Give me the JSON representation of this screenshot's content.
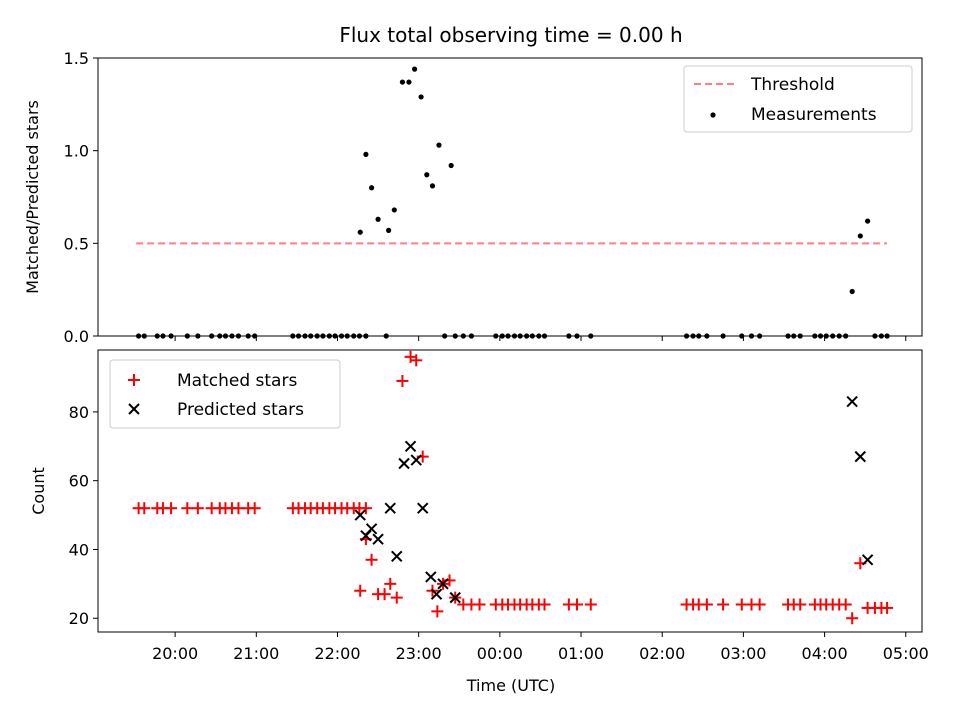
{
  "chart_data": [
    {
      "type": "scatter",
      "title": "Flux total observing time = 0.00 h",
      "xlabel": "",
      "ylabel": "Matched/Predicted stars",
      "ylim": [
        0,
        1.5
      ],
      "yticks": [
        "0.0",
        "0.5",
        "1.0",
        "1.5"
      ],
      "xlim_hours": [
        -4.95,
        5.2
      ],
      "xticks_hours": [
        -4,
        -3,
        -2,
        -1,
        0,
        1,
        2,
        3,
        4,
        5
      ],
      "legend": {
        "placement": "top-right",
        "entries": [
          "Threshold",
          "Measurements"
        ]
      },
      "threshold": {
        "name": "Threshold",
        "value": 0.5,
        "x_range_hours": [
          -4.48,
          4.77
        ],
        "color": "#ff7f7f"
      },
      "series": [
        {
          "name": "Measurements",
          "color": "#000000",
          "points": [
            [
              -4.45,
              0
            ],
            [
              -4.38,
              0
            ],
            [
              -4.22,
              0
            ],
            [
              -4.15,
              0
            ],
            [
              -4.05,
              0
            ],
            [
              -3.85,
              0
            ],
            [
              -3.72,
              0
            ],
            [
              -3.55,
              0
            ],
            [
              -3.45,
              0
            ],
            [
              -3.38,
              0
            ],
            [
              -3.3,
              0
            ],
            [
              -3.22,
              0
            ],
            [
              -3.1,
              0
            ],
            [
              -3.02,
              0
            ],
            [
              -2.55,
              0
            ],
            [
              -2.48,
              0
            ],
            [
              -2.4,
              0
            ],
            [
              -2.33,
              0
            ],
            [
              -2.25,
              0
            ],
            [
              -2.18,
              0
            ],
            [
              -2.1,
              0
            ],
            [
              -2.03,
              0
            ],
            [
              -1.95,
              0
            ],
            [
              -1.88,
              0
            ],
            [
              -1.8,
              0
            ],
            [
              -1.73,
              0
            ],
            [
              -1.65,
              0
            ],
            [
              -1.72,
              0.56
            ],
            [
              -1.65,
              0.98
            ],
            [
              -1.58,
              0.8
            ],
            [
              -1.5,
              0.63
            ],
            [
              -1.37,
              0.57
            ],
            [
              -1.3,
              0.68
            ],
            [
              -1.2,
              1.37
            ],
            [
              -1.12,
              1.37
            ],
            [
              -1.05,
              1.44
            ],
            [
              -0.97,
              1.29
            ],
            [
              -0.9,
              0.87
            ],
            [
              -0.83,
              0.81
            ],
            [
              -0.75,
              1.03
            ],
            [
              -0.6,
              0.92
            ],
            [
              -1.4,
              0
            ],
            [
              -0.68,
              0
            ],
            [
              -0.55,
              0
            ],
            [
              -0.45,
              0
            ],
            [
              -0.35,
              0
            ],
            [
              -0.05,
              0
            ],
            [
              0.03,
              0
            ],
            [
              0.1,
              0
            ],
            [
              0.18,
              0
            ],
            [
              0.25,
              0
            ],
            [
              0.33,
              0
            ],
            [
              0.4,
              0
            ],
            [
              0.48,
              0
            ],
            [
              0.55,
              0
            ],
            [
              0.85,
              0
            ],
            [
              0.95,
              0
            ],
            [
              1.12,
              0
            ],
            [
              2.3,
              0
            ],
            [
              2.38,
              0
            ],
            [
              2.45,
              0
            ],
            [
              2.55,
              0
            ],
            [
              2.75,
              0
            ],
            [
              2.98,
              0
            ],
            [
              3.1,
              0
            ],
            [
              3.2,
              0
            ],
            [
              3.55,
              0
            ],
            [
              3.62,
              0
            ],
            [
              3.7,
              0
            ],
            [
              3.88,
              0
            ],
            [
              3.95,
              0
            ],
            [
              4.02,
              0
            ],
            [
              4.1,
              0
            ],
            [
              4.18,
              0
            ],
            [
              4.26,
              0
            ],
            [
              4.34,
              0.24
            ],
            [
              4.44,
              0.54
            ],
            [
              4.53,
              0.62
            ],
            [
              4.62,
              0
            ],
            [
              4.7,
              0
            ],
            [
              4.77,
              0
            ]
          ]
        }
      ]
    },
    {
      "type": "scatter",
      "title": "",
      "xlabel": "Time (UTC)",
      "ylabel": "Count",
      "ylim": [
        16,
        98
      ],
      "yticks": [
        "20",
        "40",
        "60",
        "80"
      ],
      "xlim_hours": [
        -4.95,
        5.2
      ],
      "xticks": [
        "20:00",
        "21:00",
        "22:00",
        "23:00",
        "00:00",
        "01:00",
        "02:00",
        "03:00",
        "04:00",
        "05:00"
      ],
      "xticks_hours": [
        -4,
        -3,
        -2,
        -1,
        0,
        1,
        2,
        3,
        4,
        5
      ],
      "legend": {
        "placement": "top-left",
        "entries": [
          "Matched stars",
          "Predicted stars"
        ]
      },
      "series": [
        {
          "name": "Matched stars",
          "marker": "plus",
          "color": "#ff0000",
          "points": [
            [
              -4.45,
              52
            ],
            [
              -4.38,
              52
            ],
            [
              -4.22,
              52
            ],
            [
              -4.15,
              52
            ],
            [
              -4.05,
              52
            ],
            [
              -3.85,
              52
            ],
            [
              -3.72,
              52
            ],
            [
              -3.55,
              52
            ],
            [
              -3.45,
              52
            ],
            [
              -3.38,
              52
            ],
            [
              -3.3,
              52
            ],
            [
              -3.22,
              52
            ],
            [
              -3.1,
              52
            ],
            [
              -3.02,
              52
            ],
            [
              -2.55,
              52
            ],
            [
              -2.48,
              52
            ],
            [
              -2.4,
              52
            ],
            [
              -2.33,
              52
            ],
            [
              -2.25,
              52
            ],
            [
              -2.18,
              52
            ],
            [
              -2.1,
              52
            ],
            [
              -2.03,
              52
            ],
            [
              -1.95,
              52
            ],
            [
              -1.88,
              52
            ],
            [
              -1.8,
              52
            ],
            [
              -1.73,
              52
            ],
            [
              -1.65,
              52
            ],
            [
              -1.72,
              28
            ],
            [
              -1.65,
              43
            ],
            [
              -1.58,
              37
            ],
            [
              -1.5,
              27
            ],
            [
              -1.42,
              27
            ],
            [
              -1.35,
              30
            ],
            [
              -1.27,
              26
            ],
            [
              -1.2,
              89
            ],
            [
              -1.1,
              96
            ],
            [
              -1.03,
              95
            ],
            [
              -0.95,
              67
            ],
            [
              -0.83,
              28
            ],
            [
              -0.77,
              22
            ],
            [
              -0.7,
              30
            ],
            [
              -0.62,
              31
            ],
            [
              -0.55,
              26
            ],
            [
              -0.45,
              24
            ],
            [
              -0.35,
              24
            ],
            [
              -0.25,
              24
            ],
            [
              -0.05,
              24
            ],
            [
              0.03,
              24
            ],
            [
              0.1,
              24
            ],
            [
              0.18,
              24
            ],
            [
              0.25,
              24
            ],
            [
              0.33,
              24
            ],
            [
              0.4,
              24
            ],
            [
              0.48,
              24
            ],
            [
              0.55,
              24
            ],
            [
              0.85,
              24
            ],
            [
              0.95,
              24
            ],
            [
              1.12,
              24
            ],
            [
              2.3,
              24
            ],
            [
              2.38,
              24
            ],
            [
              2.45,
              24
            ],
            [
              2.55,
              24
            ],
            [
              2.75,
              24
            ],
            [
              2.98,
              24
            ],
            [
              3.1,
              24
            ],
            [
              3.2,
              24
            ],
            [
              3.55,
              24
            ],
            [
              3.62,
              24
            ],
            [
              3.7,
              24
            ],
            [
              3.88,
              24
            ],
            [
              3.95,
              24
            ],
            [
              4.02,
              24
            ],
            [
              4.1,
              24
            ],
            [
              4.18,
              24
            ],
            [
              4.26,
              24
            ],
            [
              4.34,
              20
            ],
            [
              4.44,
              36
            ],
            [
              4.53,
              23
            ],
            [
              4.62,
              23
            ],
            [
              4.7,
              23
            ],
            [
              4.77,
              23
            ]
          ]
        },
        {
          "name": "Predicted stars",
          "marker": "x",
          "color": "#000000",
          "points": [
            [
              -1.72,
              50
            ],
            [
              -1.65,
              44
            ],
            [
              -1.58,
              46
            ],
            [
              -1.5,
              43
            ],
            [
              -1.35,
              52
            ],
            [
              -1.27,
              38
            ],
            [
              -1.18,
              65
            ],
            [
              -1.1,
              70
            ],
            [
              -1.03,
              66
            ],
            [
              -0.95,
              52
            ],
            [
              -0.85,
              32
            ],
            [
              -0.78,
              27
            ],
            [
              -0.7,
              30
            ],
            [
              -0.55,
              26
            ],
            [
              4.34,
              83
            ],
            [
              4.44,
              67
            ],
            [
              4.53,
              37
            ]
          ]
        }
      ]
    }
  ]
}
